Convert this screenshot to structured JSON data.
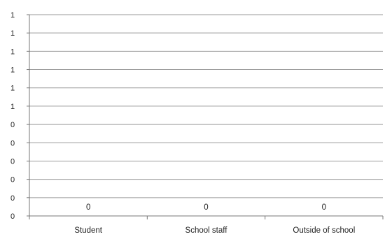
{
  "chart_data": {
    "type": "bar",
    "title": "",
    "xlabel": "",
    "ylabel": "",
    "categories": [
      "Student",
      "School staff",
      "Outside of school"
    ],
    "values": [
      0,
      0,
      0
    ],
    "data_labels": [
      "0",
      "0",
      "0"
    ],
    "y_tick_labels": [
      "0",
      "0",
      "0",
      "0",
      "0",
      "0",
      "1",
      "1",
      "1",
      "1",
      "1",
      "1"
    ],
    "ylim": [
      0,
      1
    ],
    "grid": true,
    "legend": "none",
    "colors": {
      "grid": "#9a9a9a",
      "axis": "#777777",
      "bar": "#4f81bd",
      "text": "#222222"
    }
  }
}
